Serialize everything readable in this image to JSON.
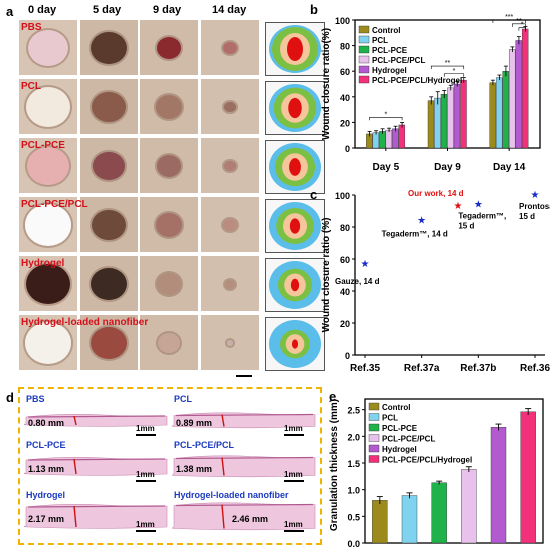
{
  "panel_a": {
    "letter": "a",
    "days": [
      "0 day",
      "5 day",
      "9 day",
      "14 day"
    ],
    "rows": [
      "PBS",
      "PCL",
      "PCL-PCE",
      "PCL-PCE/PCL",
      "Hydrogel",
      "Hydrogel-loaded nanofiber"
    ]
  },
  "panel_d": {
    "letter": "d",
    "samples": [
      {
        "label": "PBS",
        "thickness": "0.80 mm",
        "scale": "1mm"
      },
      {
        "label": "PCL",
        "thickness": "0.89 mm",
        "scale": "1mm"
      },
      {
        "label": "PCL-PCE",
        "thickness": "1.13 mm",
        "scale": "1mm"
      },
      {
        "label": "PCL-PCE/PCL",
        "thickness": "1.38 mm",
        "scale": "1mm"
      },
      {
        "label": "Hydrogel",
        "thickness": "2.17 mm",
        "scale": "1mm"
      },
      {
        "label": "Hydrogel-loaded nanofiber",
        "thickness": "2.46 mm",
        "scale": "1mm"
      }
    ]
  },
  "chart_data": [
    {
      "letter": "b",
      "type": "bar",
      "categories": [
        "Day 5",
        "Day 9",
        "Day 14"
      ],
      "ylabel": "Wound closure ratio(%)",
      "ylim": [
        0,
        100
      ],
      "yticks": [
        "0",
        "20",
        "40",
        "60",
        "80",
        "100"
      ],
      "legend_position": "top-left",
      "series": [
        {
          "name": "Control",
          "color": "#9c8b1c",
          "values": [
            11,
            37,
            51
          ],
          "err": [
            2,
            3,
            2
          ]
        },
        {
          "name": "PCL",
          "color": "#7fd3ee",
          "values": [
            12,
            39,
            55
          ],
          "err": [
            1.5,
            5,
            2
          ]
        },
        {
          "name": "PCL-PCE",
          "color": "#1fb24a",
          "values": [
            13,
            42,
            60
          ],
          "err": [
            2,
            3,
            4
          ]
        },
        {
          "name": "PCL-PCE/PCL",
          "color": "#e8c2ec",
          "values": [
            14,
            47,
            77
          ],
          "err": [
            1.5,
            2,
            2
          ]
        },
        {
          "name": "Hydrogel",
          "color": "#b35ad0",
          "values": [
            15,
            50,
            84
          ],
          "err": [
            2,
            2,
            3
          ]
        },
        {
          "name": "PCL-PCE/PCL/Hydrogel",
          "color": "#f3307a",
          "values": [
            18,
            53,
            93
          ],
          "err": [
            2,
            2,
            2
          ]
        }
      ],
      "significance": [
        "*",
        "**",
        "*",
        "***",
        "**",
        "*"
      ]
    },
    {
      "letter": "c",
      "type": "scatter",
      "ylabel": "Wound closure ratio (%)",
      "ylim": [
        0,
        100
      ],
      "yticks": [
        "0",
        "20",
        "40",
        "60",
        "80",
        "100"
      ],
      "categories": [
        "Ref.35",
        "Ref.37a",
        "Ref.37b",
        "Ref.36"
      ],
      "points": [
        {
          "label": "Gauze, 14 d",
          "x": "Ref.35",
          "y": 57,
          "color": "#1a2cc8"
        },
        {
          "label": "Tegaderm™, 14 d",
          "x": "Ref.37a",
          "y": 84,
          "color": "#1a2cc8"
        },
        {
          "label": "Our work, 14 d",
          "x": "between",
          "y": 93,
          "color": "#e01010"
        },
        {
          "label": "Tegaderm™,\n15 d",
          "x": "Ref.37b",
          "y": 94,
          "color": "#1a2cc8"
        },
        {
          "label": "Prontosan,\n15 d",
          "x": "Ref.36",
          "y": 100,
          "color": "#1a2cc8"
        }
      ]
    },
    {
      "letter": "e",
      "type": "bar",
      "ylabel": "Granulation thickness (mm)",
      "ylim": [
        0,
        2.5
      ],
      "yticks": [
        "0.0",
        "0.5",
        "1.0",
        "1.5",
        "2.0",
        "2.5"
      ],
      "legend_position": "top-left",
      "series": [
        {
          "name": "Control",
          "color": "#9c8b1c",
          "value": 0.8,
          "err": 0.07
        },
        {
          "name": "PCL",
          "color": "#7fd3ee",
          "value": 0.89,
          "err": 0.05
        },
        {
          "name": "PCL-PCE",
          "color": "#1fb24a",
          "value": 1.13,
          "err": 0.03
        },
        {
          "name": "PCL-PCE/PCL",
          "color": "#e8c2ec",
          "value": 1.38,
          "err": 0.05
        },
        {
          "name": "Hydrogel",
          "color": "#b35ad0",
          "value": 2.17,
          "err": 0.06
        },
        {
          "name": "PCL-PCE/PCL/Hydrogel",
          "color": "#f3307a",
          "value": 2.46,
          "err": 0.06
        }
      ]
    }
  ]
}
